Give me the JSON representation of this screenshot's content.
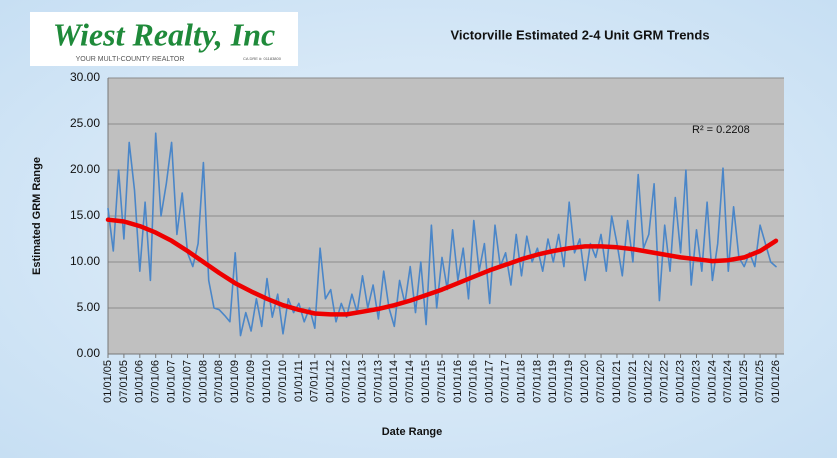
{
  "logo": {
    "name": "Wiest Realty, Inc",
    "tagline": "YOUR MULTI-COUNTY REALTOR",
    "license": "CA DRE #: 01183800"
  },
  "chart_data": {
    "type": "line",
    "title": "Victorville Estimated 2-4 Unit  GRM Trends",
    "x_label": "Date Range",
    "y_label": "Estimated GRM Range",
    "annotation": "R² = 0.2208",
    "grid": true,
    "ylim": [
      0,
      30
    ],
    "yticks": [
      {
        "value": 0,
        "label": "0.00"
      },
      {
        "value": 5,
        "label": "5.00"
      },
      {
        "value": 10,
        "label": "10.00"
      },
      {
        "value": 15,
        "label": "15.00"
      },
      {
        "value": 20,
        "label": "20.00"
      },
      {
        "value": 25,
        "label": "25.00"
      },
      {
        "value": 30,
        "label": "30.00"
      }
    ],
    "xlim": [
      "01/01/05",
      "01/01/26"
    ],
    "xticks": [
      "01/01/05",
      "07/01/05",
      "01/01/06",
      "07/01/06",
      "01/01/07",
      "07/01/07",
      "01/01/08",
      "07/01/08",
      "01/01/09",
      "07/01/09",
      "01/01/10",
      "07/01/10",
      "01/01/11",
      "07/01/11",
      "01/01/12",
      "07/01/12",
      "01/01/13",
      "07/01/13",
      "01/01/14",
      "07/01/14",
      "01/01/15",
      "07/01/15",
      "01/01/16",
      "07/01/16",
      "01/01/17",
      "07/01/17",
      "01/01/18",
      "07/01/18",
      "01/01/19",
      "07/01/19",
      "01/01/20",
      "07/01/20",
      "01/01/21",
      "07/01/21",
      "01/01/22",
      "07/01/22",
      "01/01/23",
      "07/01/23",
      "01/01/24",
      "07/01/24",
      "01/01/25",
      "07/01/25",
      "01/01/26"
    ],
    "series": [
      {
        "color": "#4a86c8",
        "x": [
          "01/01/05",
          "03/01/05",
          "05/01/05",
          "07/01/05",
          "09/01/05",
          "11/01/05",
          "01/01/06",
          "03/01/06",
          "05/01/06",
          "07/01/06",
          "09/01/06",
          "11/01/06",
          "01/01/07",
          "03/01/07",
          "05/01/07",
          "07/01/07",
          "09/01/07",
          "11/01/07",
          "01/01/08",
          "03/01/08",
          "05/01/08",
          "07/01/08",
          "09/01/08",
          "11/01/08",
          "01/01/09",
          "03/01/09",
          "05/01/09",
          "07/01/09",
          "09/01/09",
          "11/01/09",
          "01/01/10",
          "03/01/10",
          "05/01/10",
          "07/01/10",
          "09/01/10",
          "11/01/10",
          "01/01/11",
          "03/01/11",
          "05/01/11",
          "07/01/11",
          "09/01/11",
          "11/01/11",
          "01/01/12",
          "03/01/12",
          "05/01/12",
          "07/01/12",
          "09/01/12",
          "11/01/12",
          "01/01/13",
          "03/01/13",
          "05/01/13",
          "07/01/13",
          "09/01/13",
          "11/01/13",
          "01/01/14",
          "03/01/14",
          "05/01/14",
          "07/01/14",
          "09/01/14",
          "11/01/14",
          "01/01/15",
          "03/01/15",
          "05/01/15",
          "07/01/15",
          "09/01/15",
          "11/01/15",
          "01/01/16",
          "03/01/16",
          "05/01/16",
          "07/01/16",
          "09/01/16",
          "11/01/16",
          "01/01/17",
          "03/01/17",
          "05/01/17",
          "07/01/17",
          "09/01/17",
          "11/01/17",
          "01/01/18",
          "03/01/18",
          "05/01/18",
          "07/01/18",
          "09/01/18",
          "11/01/18",
          "01/01/19",
          "03/01/19",
          "05/01/19",
          "07/01/19",
          "09/01/19",
          "11/01/19",
          "01/01/20",
          "03/01/20",
          "05/01/20",
          "07/01/20",
          "09/01/20",
          "11/01/20",
          "01/01/21",
          "03/01/21",
          "05/01/21",
          "07/01/21",
          "09/01/21",
          "11/01/21",
          "01/01/22",
          "03/01/22",
          "05/01/22",
          "07/01/22",
          "09/01/22",
          "11/01/22",
          "01/01/23",
          "03/01/23",
          "05/01/23",
          "07/01/23",
          "09/01/23",
          "11/01/23",
          "01/01/24",
          "03/01/24",
          "05/01/24",
          "07/01/24",
          "09/01/24",
          "11/01/24",
          "01/01/25",
          "03/01/25",
          "05/01/25",
          "07/01/25",
          "09/01/25",
          "11/01/25",
          "01/01/26"
        ],
        "values": [
          15.8,
          11.2,
          20.0,
          12.5,
          23.0,
          17.8,
          9.0,
          16.5,
          8.0,
          24.0,
          15.0,
          18.5,
          23.0,
          13.0,
          17.5,
          11.0,
          9.5,
          12.0,
          20.8,
          8.0,
          5.0,
          4.8,
          4.2,
          3.5,
          11.0,
          2.0,
          4.5,
          2.5,
          6.0,
          3.0,
          8.2,
          4.0,
          6.5,
          2.2,
          6.0,
          4.5,
          5.5,
          3.5,
          5.0,
          2.8,
          11.5,
          6.0,
          7.0,
          3.5,
          5.5,
          4.0,
          6.5,
          4.5,
          8.5,
          5.0,
          7.5,
          3.8,
          9.0,
          5.0,
          3.0,
          8.0,
          5.5,
          9.5,
          4.5,
          10.0,
          3.2,
          14.0,
          5.0,
          10.5,
          7.0,
          13.5,
          8.0,
          11.5,
          6.0,
          14.5,
          9.0,
          12.0,
          5.5,
          14.0,
          9.5,
          11.0,
          7.5,
          13.0,
          8.5,
          12.8,
          10.0,
          11.5,
          9.0,
          12.5,
          10.0,
          13.0,
          9.5,
          16.5,
          11.0,
          12.5,
          8.0,
          12.0,
          10.5,
          13.0,
          9.0,
          15.0,
          12.0,
          8.5,
          14.5,
          10.0,
          19.5,
          11.5,
          13.0,
          18.5,
          5.8,
          14.0,
          9.0,
          17.0,
          11.0,
          20.0,
          7.5,
          13.5,
          9.0,
          16.5,
          8.0,
          12.0,
          20.2,
          9.0,
          16.0,
          10.5,
          9.5,
          11.0,
          9.5,
          14.0,
          12.0,
          10.0,
          9.5
        ]
      },
      {
        "color": "#ee0000",
        "x": [
          "01/01/05",
          "07/01/05",
          "01/01/06",
          "07/01/06",
          "01/01/07",
          "07/01/07",
          "01/01/08",
          "07/01/08",
          "01/01/09",
          "07/01/09",
          "01/01/10",
          "07/01/10",
          "01/01/11",
          "07/01/11",
          "01/01/12",
          "07/01/12",
          "01/01/13",
          "07/01/13",
          "01/01/14",
          "07/01/14",
          "01/01/15",
          "07/01/15",
          "01/01/16",
          "07/01/16",
          "01/01/17",
          "07/01/17",
          "01/01/18",
          "07/01/18",
          "01/01/19",
          "07/01/19",
          "01/01/20",
          "07/01/20",
          "01/01/21",
          "07/01/21",
          "01/01/22",
          "07/01/22",
          "01/01/23",
          "07/01/23",
          "01/01/24",
          "07/01/24",
          "01/01/25",
          "07/01/25",
          "01/01/26"
        ],
        "values": [
          14.6,
          14.4,
          13.9,
          13.2,
          12.3,
          11.2,
          10.0,
          8.8,
          7.7,
          6.8,
          6.0,
          5.3,
          4.8,
          4.4,
          4.3,
          4.3,
          4.6,
          4.9,
          5.3,
          5.8,
          6.4,
          7.0,
          7.7,
          8.4,
          9.1,
          9.7,
          10.3,
          10.8,
          11.2,
          11.5,
          11.7,
          11.7,
          11.6,
          11.4,
          11.1,
          10.8,
          10.5,
          10.3,
          10.1,
          10.2,
          10.5,
          11.2,
          12.3
        ]
      }
    ]
  }
}
